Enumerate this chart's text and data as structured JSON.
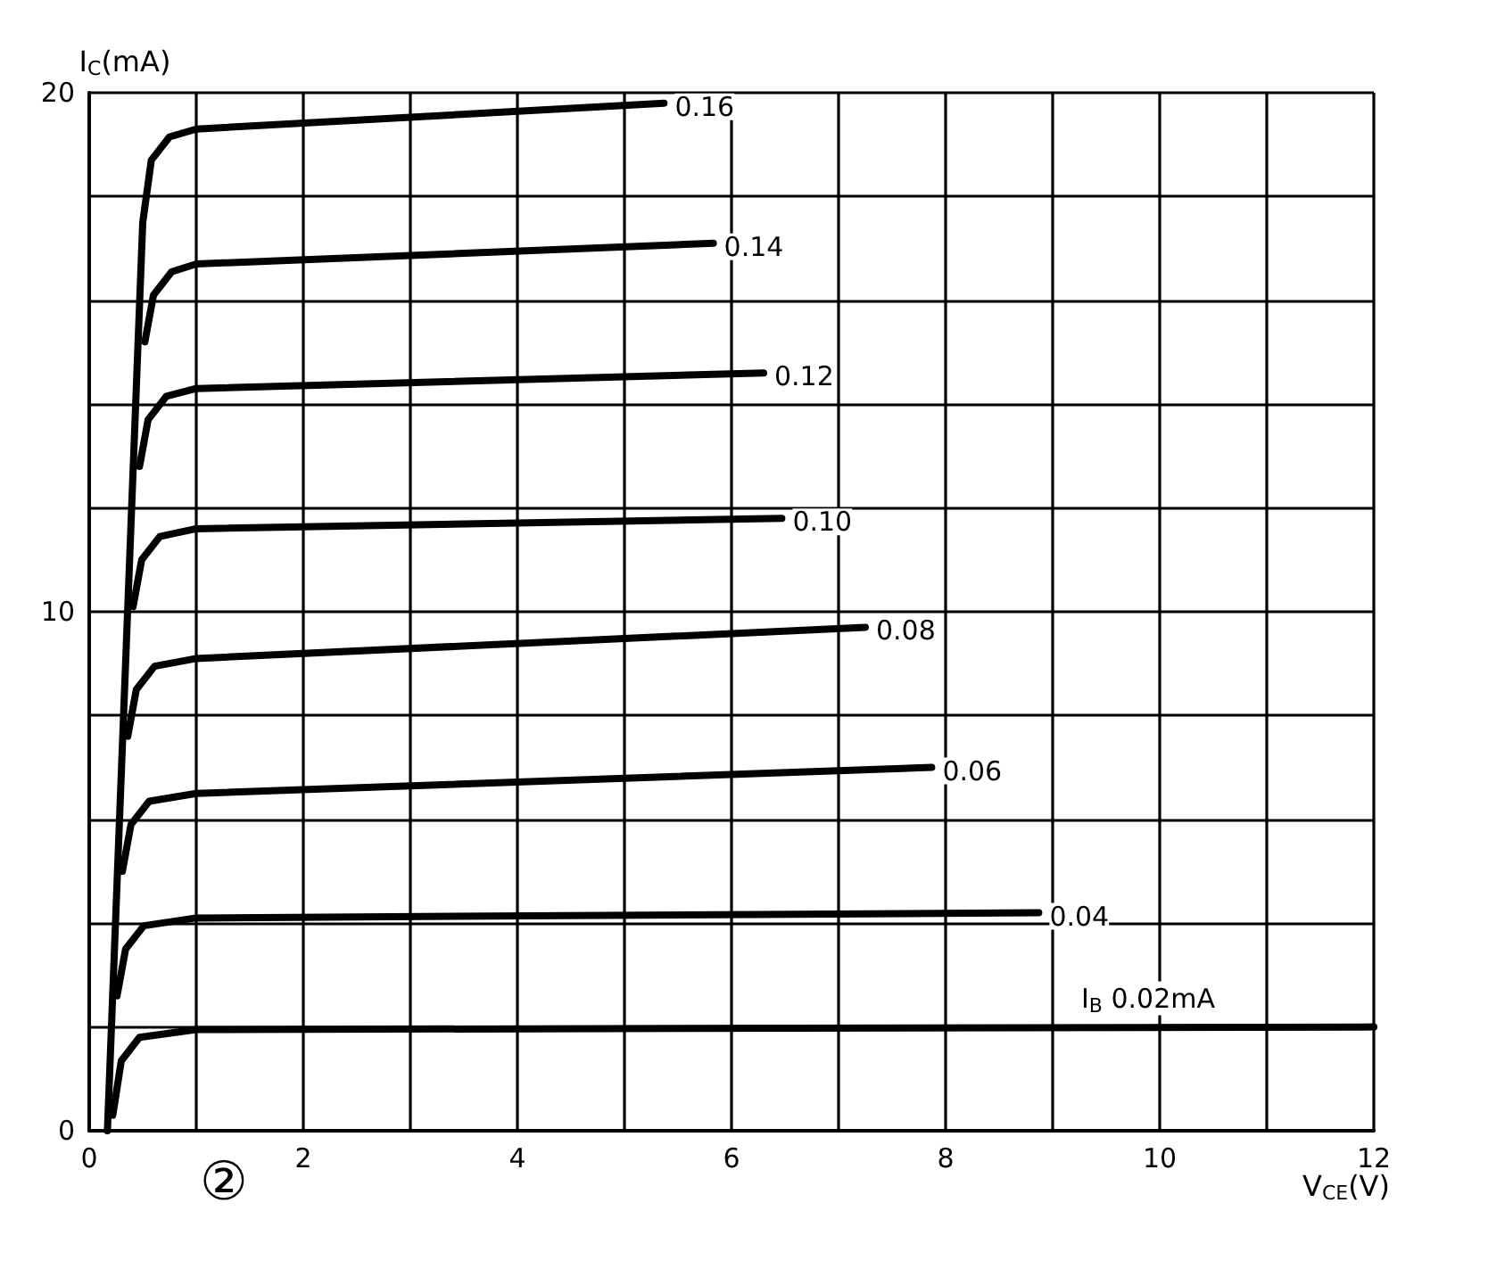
{
  "chart_data": {
    "type": "line",
    "xlabel": "V$_{CE}$(V)",
    "ylabel": "I$_{C}$(mA)",
    "annotations": [
      "②"
    ],
    "xlim": [
      0,
      12
    ],
    "ylim": [
      0,
      20
    ],
    "xticks": [
      0,
      {
        "value": 1,
        "label": null
      },
      2,
      {
        "value": 3,
        "label": null
      },
      4,
      {
        "value": 5,
        "label": null
      },
      6,
      {
        "value": 7,
        "label": null
      },
      8,
      {
        "value": 9,
        "label": null
      },
      10,
      {
        "value": 11,
        "label": null
      },
      12
    ],
    "yticks": [
      0,
      {
        "value": 2,
        "label": null
      },
      {
        "value": 4,
        "label": null
      },
      {
        "value": 6,
        "label": null
      },
      {
        "value": 8,
        "label": null
      },
      10,
      {
        "value": 12,
        "label": null
      },
      {
        "value": 14,
        "label": null
      },
      {
        "value": 16,
        "label": null
      },
      {
        "value": 18,
        "label": null
      },
      20
    ],
    "grid": true,
    "legend": false,
    "marker": "none",
    "line_style": "solid",
    "series": [
      {
        "name": "0.16",
        "color": "#000000",
        "x": [
          0.17,
          0.5,
          0.58,
          0.75,
          1,
          5.37
        ],
        "values": [
          0,
          17.5,
          18.7,
          19.15,
          19.3,
          19.8
        ]
      },
      {
        "name": "0.14",
        "color": "#000000",
        "x": [
          0.52,
          0.6,
          0.77,
          1,
          5.83
        ],
        "values": [
          15.2,
          16.1,
          16.55,
          16.7,
          17.1
        ]
      },
      {
        "name": "0.12",
        "color": "#000000",
        "x": [
          0.47,
          0.55,
          0.72,
          1,
          6.3
        ],
        "values": [
          12.8,
          13.7,
          14.15,
          14.3,
          14.6
        ]
      },
      {
        "name": "0.10",
        "color": "#000000",
        "x": [
          0.41,
          0.49,
          0.66,
          1,
          6.47
        ],
        "values": [
          10.1,
          11.0,
          11.45,
          11.6,
          11.8
        ]
      },
      {
        "name": "0.08",
        "color": "#000000",
        "x": [
          0.36,
          0.44,
          0.61,
          1,
          7.25
        ],
        "values": [
          7.6,
          8.5,
          8.95,
          9.1,
          9.7
        ]
      },
      {
        "name": "0.06",
        "color": "#000000",
        "x": [
          0.31,
          0.39,
          0.56,
          1,
          7.87
        ],
        "values": [
          5.0,
          5.9,
          6.35,
          6.5,
          7.0
        ]
      },
      {
        "name": "0.04",
        "color": "#000000",
        "x": [
          0.26,
          0.34,
          0.51,
          1,
          8.87
        ],
        "values": [
          2.6,
          3.5,
          3.95,
          4.1,
          4.2
        ]
      },
      {
        "name": "I$_{B}$ 0.02mA",
        "color": "#000000",
        "x": [
          0.22,
          0.3,
          0.47,
          1,
          12
        ],
        "values": [
          0.3,
          1.35,
          1.8,
          1.95,
          2.0
        ]
      }
    ]
  }
}
